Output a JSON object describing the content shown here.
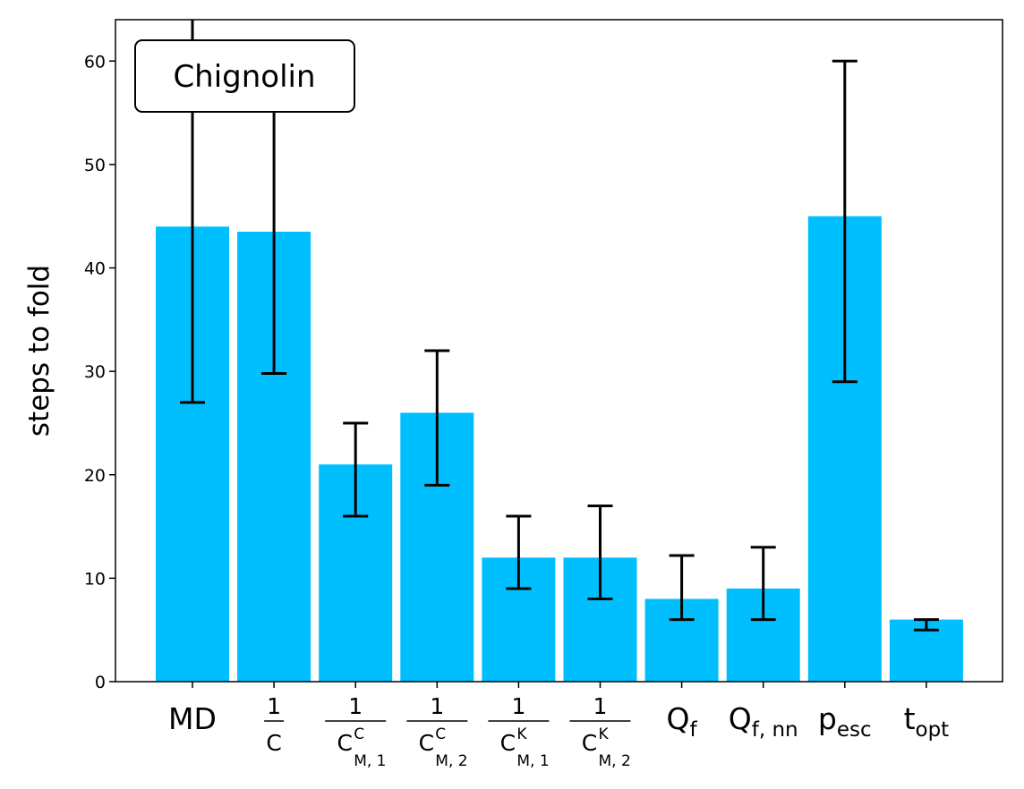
{
  "chart_data": {
    "type": "bar",
    "categories": [
      {
        "id": "MD",
        "base": "MD",
        "sub": ""
      },
      {
        "id": "1/C",
        "frac": true,
        "num": "1",
        "den": "C",
        "sup": "",
        "sub": ""
      },
      {
        "id": "1/C^C_M,1",
        "frac": true,
        "num": "1",
        "den": "C",
        "sup": "C",
        "sub": "M, 1"
      },
      {
        "id": "1/C^C_M,2",
        "frac": true,
        "num": "1",
        "den": "C",
        "sup": "C",
        "sub": "M, 2"
      },
      {
        "id": "1/C^K_M,1",
        "frac": true,
        "num": "1",
        "den": "C",
        "sup": "K",
        "sub": "M, 1"
      },
      {
        "id": "1/C^K_M,2",
        "frac": true,
        "num": "1",
        "den": "C",
        "sup": "K",
        "sub": "M, 2"
      },
      {
        "id": "Q_f",
        "base": "Q",
        "sub": "f"
      },
      {
        "id": "Q_f,nn",
        "base": "Q",
        "sub": "f, nn"
      },
      {
        "id": "p_esc",
        "base": "p",
        "sub": "esc"
      },
      {
        "id": "t_opt",
        "base": "t",
        "sub": "opt"
      }
    ],
    "values": [
      44,
      43.5,
      21,
      26,
      12,
      12,
      8,
      9,
      45,
      6
    ],
    "error_low": [
      27,
      29.8,
      16,
      19,
      9,
      8,
      6,
      6,
      29,
      5
    ],
    "error_high": [
      70,
      60,
      25,
      32,
      16,
      17,
      12.2,
      13,
      60,
      6
    ],
    "ylabel": "steps to fold",
    "ylim": [
      0,
      64
    ],
    "yticks": [
      0,
      10,
      20,
      30,
      40,
      50,
      60
    ],
    "annotation": "Chignolin",
    "annotation_position": "top-left",
    "bar_color": "#00bfff",
    "grid": false
  }
}
